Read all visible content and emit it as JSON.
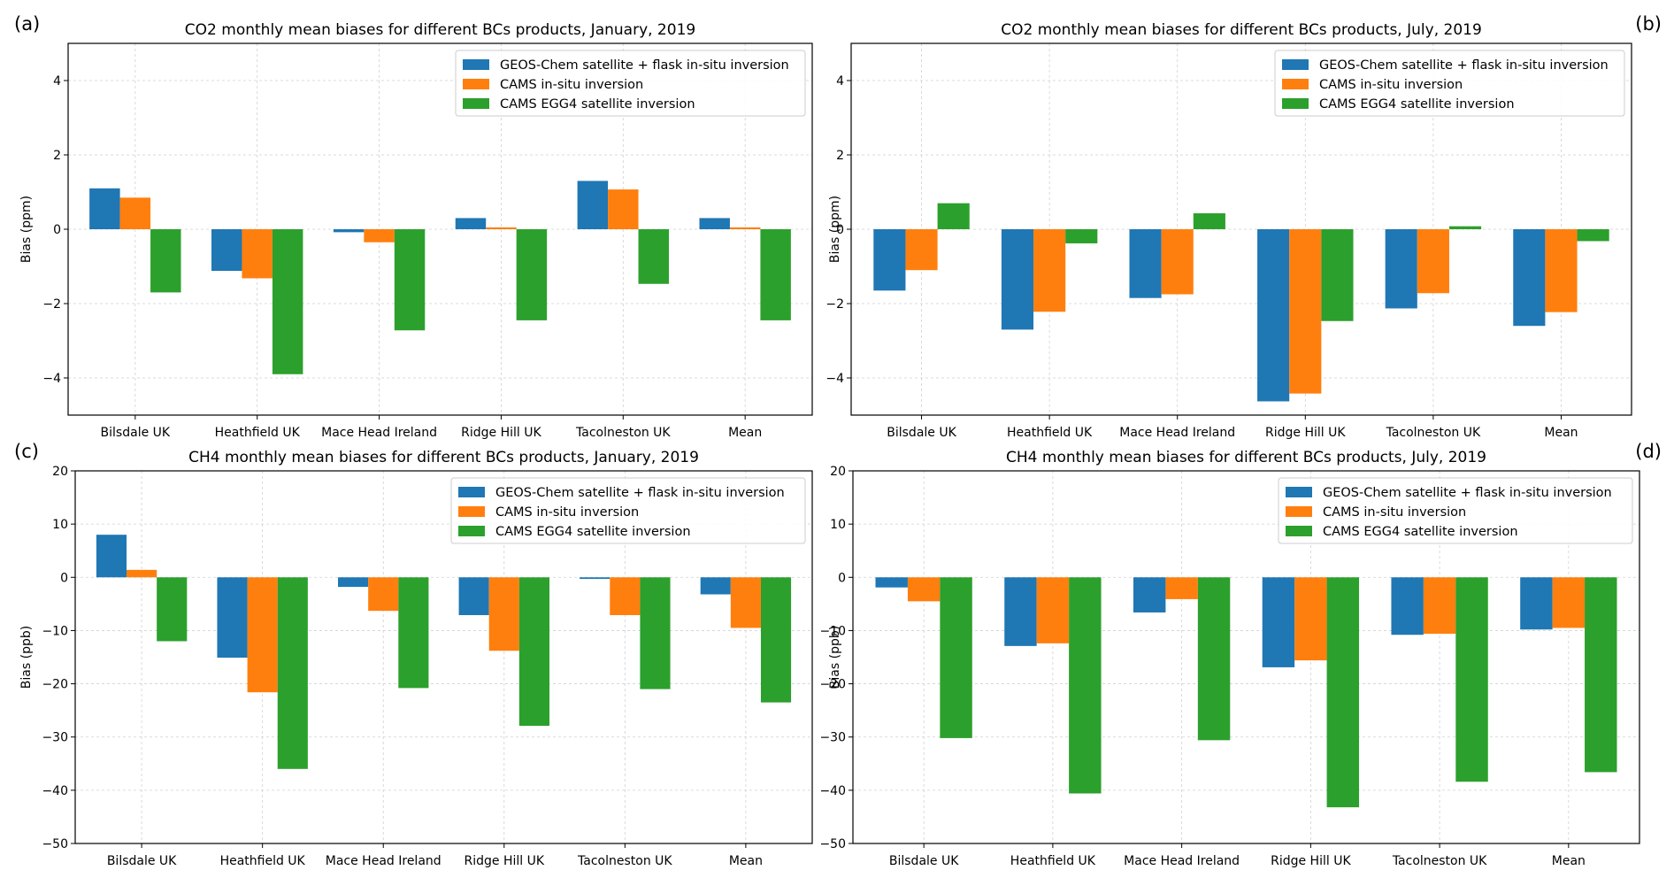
{
  "colors": {
    "series": [
      "#1f77b4",
      "#ff7f0e",
      "#2ca02c"
    ],
    "grid": "#d0d0d0",
    "axis": "#000000",
    "legend_border": "#cccccc"
  },
  "chart_data": [
    {
      "id": "a",
      "panel_label": "(a)",
      "type": "bar",
      "title": "CO2 monthly mean biases for different BCs products, January, 2019",
      "xlabel": "",
      "ylabel": "Bias (ppm)",
      "ylim": [
        -5,
        5
      ],
      "yticks": [
        -4,
        -2,
        0,
        2,
        4
      ],
      "ytick_labels": [
        "−4",
        "−2",
        "0",
        "2",
        "4"
      ],
      "grid": true,
      "legend_position": "top-right",
      "categories": [
        "Bilsdale UK",
        "Heathfield UK",
        "Mace Head Ireland",
        "Ridge Hill UK",
        "Tacolneston UK",
        "Mean"
      ],
      "series": [
        {
          "name": "GEOS-Chem satellite + flask in-situ inversion",
          "values": [
            1.1,
            -1.12,
            -0.08,
            0.3,
            1.3,
            0.3
          ]
        },
        {
          "name": "CAMS in-situ inversion",
          "values": [
            0.85,
            -1.32,
            -0.35,
            0.05,
            1.07,
            0.05
          ]
        },
        {
          "name": "CAMS EGG4 satellite inversion",
          "values": [
            -1.7,
            -3.9,
            -2.72,
            -2.45,
            -1.47,
            -2.45
          ]
        }
      ]
    },
    {
      "id": "b",
      "panel_label": "(b)",
      "type": "bar",
      "title": "CO2 monthly mean biases for different BCs products, July, 2019",
      "xlabel": "",
      "ylabel": "Bias (ppm)",
      "ylim": [
        -5,
        5
      ],
      "yticks": [
        -4,
        -2,
        0,
        2,
        4
      ],
      "ytick_labels": [
        "−4",
        "−2",
        "0",
        "2",
        "4"
      ],
      "grid": true,
      "legend_position": "top-right",
      "categories": [
        "Bilsdale UK",
        "Heathfield UK",
        "Mace Head Ireland",
        "Ridge Hill UK",
        "Tacolneston UK",
        "Mean"
      ],
      "series": [
        {
          "name": "GEOS-Chem satellite + flask in-situ inversion",
          "values": [
            -1.65,
            -2.7,
            -1.85,
            -4.63,
            -2.13,
            -2.6
          ]
        },
        {
          "name": "CAMS in-situ inversion",
          "values": [
            -1.1,
            -2.22,
            -1.75,
            -4.42,
            -1.72,
            -2.23
          ]
        },
        {
          "name": "CAMS EGG4 satellite inversion",
          "values": [
            0.7,
            -0.38,
            0.43,
            -2.47,
            0.08,
            -0.32
          ]
        }
      ]
    },
    {
      "id": "c",
      "panel_label": "(c)",
      "type": "bar",
      "title": "CH4 monthly mean biases for different BCs products, January, 2019",
      "xlabel": "",
      "ylabel": "Bias (ppb)",
      "ylim": [
        -50,
        20
      ],
      "yticks": [
        -50,
        -40,
        -30,
        -20,
        -10,
        0,
        10,
        20
      ],
      "ytick_labels": [
        "−50",
        "−40",
        "−30",
        "−20",
        "−10",
        "0",
        "10",
        "20"
      ],
      "grid": true,
      "legend_position": "top-right",
      "categories": [
        "Bilsdale UK",
        "Heathfield UK",
        "Mace Head Ireland",
        "Ridge Hill UK",
        "Tacolneston UK",
        "Mean"
      ],
      "series": [
        {
          "name": "GEOS-Chem satellite + flask in-situ inversion",
          "values": [
            8.0,
            -15.1,
            -1.8,
            -7.1,
            -0.3,
            -3.2
          ]
        },
        {
          "name": "CAMS in-situ inversion",
          "values": [
            1.4,
            -21.6,
            -6.3,
            -13.8,
            -7.1,
            -9.5
          ]
        },
        {
          "name": "CAMS EGG4 satellite inversion",
          "values": [
            -12.0,
            -36.0,
            -20.8,
            -27.9,
            -21.0,
            -23.5
          ]
        }
      ]
    },
    {
      "id": "d",
      "panel_label": "(d)",
      "type": "bar",
      "title": "CH4 monthly mean biases for different BCs products, July, 2019",
      "xlabel": "",
      "ylabel": "Bias (ppb)",
      "ylim": [
        -50,
        20
      ],
      "yticks": [
        -50,
        -40,
        -30,
        -20,
        -10,
        0,
        10,
        20
      ],
      "ytick_labels": [
        "−50",
        "−40",
        "−30",
        "−20",
        "−10",
        "0",
        "10",
        "20"
      ],
      "grid": true,
      "legend_position": "top-right",
      "categories": [
        "Bilsdale UK",
        "Heathfield UK",
        "Mace Head Ireland",
        "Ridge Hill UK",
        "Tacolneston UK",
        "Mean"
      ],
      "series": [
        {
          "name": "GEOS-Chem satellite + flask in-situ inversion",
          "values": [
            -1.9,
            -12.9,
            -6.6,
            -16.9,
            -10.8,
            -9.8
          ]
        },
        {
          "name": "CAMS in-situ inversion",
          "values": [
            -4.5,
            -12.4,
            -4.1,
            -15.6,
            -10.6,
            -9.5
          ]
        },
        {
          "name": "CAMS EGG4 satellite inversion",
          "values": [
            -30.2,
            -40.6,
            -30.6,
            -43.2,
            -38.4,
            -36.6
          ]
        }
      ]
    }
  ]
}
